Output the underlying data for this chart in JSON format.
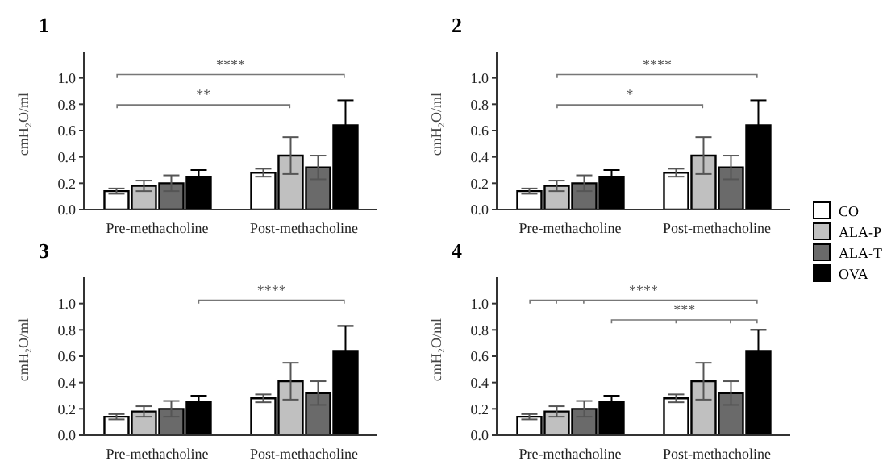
{
  "chart_data": [
    {
      "type": "bar",
      "title": "1",
      "ylabel": "cmH₂O/ml",
      "categories": [
        "Pre-methacholine",
        "Post-methacholine"
      ],
      "ylim": [
        0,
        1.2
      ],
      "yticks": [
        {
          "value": 0,
          "label": "0.0"
        },
        {
          "value": 0.2,
          "label": "0.2"
        },
        {
          "value": 0.4,
          "label": "0.4"
        },
        {
          "value": 0.6,
          "label": "0.6"
        },
        {
          "value": 0.8,
          "label": "0.8"
        },
        {
          "value": 1,
          "label": "1.0"
        }
      ],
      "grid": false,
      "legend": "right",
      "annotations": [
        "****",
        "**"
      ],
      "series": [
        {
          "name": "CO",
          "color": "#ffffff",
          "values": [
            0.14,
            0.28
          ],
          "errors": [
            0.02,
            0.03
          ]
        },
        {
          "name": "ALA-P",
          "color": "#c0c0c0",
          "values": [
            0.18,
            0.41
          ],
          "errors": [
            0.04,
            0.14
          ]
        },
        {
          "name": "ALA-T",
          "color": "#6a6a6a",
          "values": [
            0.2,
            0.32
          ],
          "errors": [
            0.06,
            0.09
          ]
        },
        {
          "name": "OVA",
          "color": "#000000",
          "values": [
            0.25,
            0.64
          ],
          "errors": [
            0.05,
            0.19
          ]
        }
      ]
    },
    {
      "type": "bar",
      "title": "2",
      "ylabel": "cmH₂O/ml",
      "categories": [
        "Pre-methacholine",
        "Post-methacholine"
      ],
      "ylim": [
        0,
        1.2
      ],
      "yticks": [
        {
          "value": 0,
          "label": "0.0"
        },
        {
          "value": 0.2,
          "label": "0.2"
        },
        {
          "value": 0.4,
          "label": "0.4"
        },
        {
          "value": 0.6,
          "label": "0.6"
        },
        {
          "value": 0.8,
          "label": "0.8"
        },
        {
          "value": 1,
          "label": "1.0"
        }
      ],
      "grid": false,
      "annotations": [
        "****",
        "*"
      ],
      "series": [
        {
          "color": "#ffffff",
          "values": [
            0.14,
            0.28
          ],
          "errors": [
            0.02,
            0.03
          ]
        },
        {
          "color": "#c0c0c0",
          "values": [
            0.18,
            0.41
          ],
          "errors": [
            0.04,
            0.14
          ]
        },
        {
          "color": "#6a6a6a",
          "values": [
            0.2,
            0.32
          ],
          "errors": [
            0.06,
            0.09
          ]
        },
        {
          "color": "#000000",
          "values": [
            0.25,
            0.64
          ],
          "errors": [
            0.05,
            0.19
          ]
        }
      ]
    },
    {
      "type": "bar",
      "title": "3",
      "ylabel": "cmH₂O/ml",
      "categories": [
        "Pre-methacholine",
        "Post-methacholine"
      ],
      "ylim": [
        0,
        1.2
      ],
      "yticks": [
        {
          "value": 0,
          "label": "0.0"
        },
        {
          "value": 0.2,
          "label": "0.2"
        },
        {
          "value": 0.4,
          "label": "0.4"
        },
        {
          "value": 0.6,
          "label": "0.6"
        },
        {
          "value": 0.8,
          "label": "0.8"
        },
        {
          "value": 1,
          "label": "1.0"
        }
      ],
      "grid": false,
      "annotations": [
        "****"
      ],
      "series": [
        {
          "color": "#ffffff",
          "values": [
            0.14,
            0.28
          ],
          "errors": [
            0.02,
            0.03
          ]
        },
        {
          "color": "#c0c0c0",
          "values": [
            0.18,
            0.41
          ],
          "errors": [
            0.04,
            0.14
          ]
        },
        {
          "color": "#6a6a6a",
          "values": [
            0.2,
            0.32
          ],
          "errors": [
            0.06,
            0.09
          ]
        },
        {
          "color": "#000000",
          "values": [
            0.25,
            0.64
          ],
          "errors": [
            0.05,
            0.19
          ]
        }
      ]
    },
    {
      "type": "bar",
      "title": "4",
      "ylabel": "cmH₂O/ml",
      "categories": [
        "Pre-methacholine",
        "Post-methacholine"
      ],
      "ylim": [
        0,
        1.2
      ],
      "yticks": [
        {
          "value": 0,
          "label": "0.0"
        },
        {
          "value": 0.2,
          "label": "0.2"
        },
        {
          "value": 0.4,
          "label": "0.4"
        },
        {
          "value": 0.6,
          "label": "0.6"
        },
        {
          "value": 0.8,
          "label": "0.8"
        },
        {
          "value": 1,
          "label": "1.0"
        }
      ],
      "grid": false,
      "annotations": [
        "****",
        "***"
      ],
      "series": [
        {
          "color": "#ffffff",
          "values": [
            0.14,
            0.28
          ],
          "errors": [
            0.02,
            0.03
          ]
        },
        {
          "color": "#c0c0c0",
          "values": [
            0.18,
            0.41
          ],
          "errors": [
            0.04,
            0.14
          ]
        },
        {
          "color": "#6a6a6a",
          "values": [
            0.2,
            0.32
          ],
          "errors": [
            0.06,
            0.09
          ]
        },
        {
          "color": "#000000",
          "values": [
            0.25,
            0.64
          ],
          "errors": [
            0.05,
            0.16
          ]
        }
      ]
    }
  ]
}
